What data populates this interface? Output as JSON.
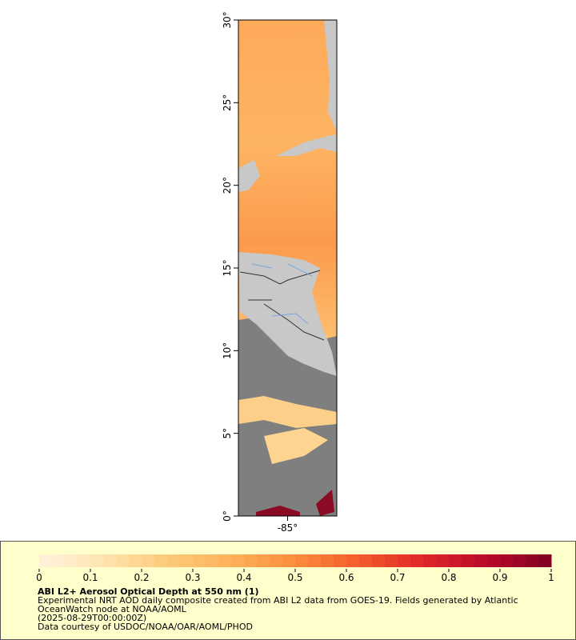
{
  "map": {
    "lat_range": [
      0,
      30
    ],
    "lon_range": [
      -88,
      -82
    ],
    "lat_ticks": [
      {
        "value": 0,
        "label": "0°"
      },
      {
        "value": 5,
        "label": "5°"
      },
      {
        "value": 10,
        "label": "10°"
      },
      {
        "value": 15,
        "label": "15°"
      },
      {
        "value": 20,
        "label": "20°"
      },
      {
        "value": 25,
        "label": "25°"
      },
      {
        "value": 30,
        "label": "30°"
      }
    ],
    "lon_ticks": [
      {
        "value": -85,
        "label": "-85°"
      }
    ]
  },
  "colorbar": {
    "range": [
      0,
      1
    ],
    "ticks": [
      0,
      0.1,
      0.2,
      0.3,
      0.4,
      0.5,
      0.6,
      0.7,
      0.8,
      0.9,
      1
    ],
    "colors": [
      "#fff3dc",
      "#fee3b0",
      "#fdcb78",
      "#fdb15a",
      "#fc8d3c",
      "#f45b2c",
      "#e0262a",
      "#b80a2a",
      "#7f0020"
    ]
  },
  "legend": {
    "title": "ABI L2+ Aerosol Optical Depth at 550 nm (1)",
    "description": "Experimental NRT AOD daily composite created from ABI L2 data from GOES-19. Fields generated by Atlantic OceanWatch node at NOAA/AOML",
    "date": "(2025-08-29T00:00:00Z)",
    "credit": "Data courtesy of USDOC/NOAA/OAR/AOML/PHOD"
  }
}
